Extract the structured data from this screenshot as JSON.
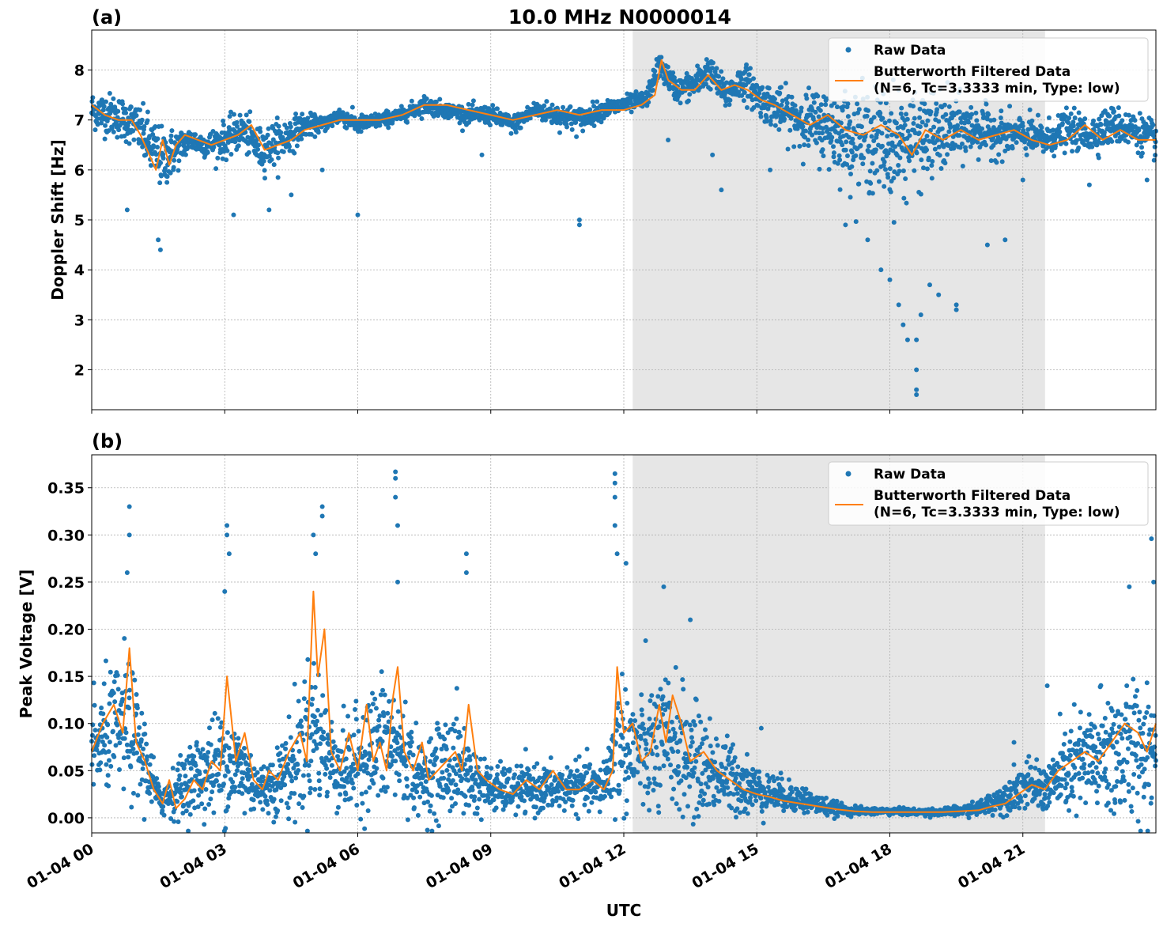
{
  "figure": {
    "title": "10.0 MHz N0000014",
    "xlabel": "UTC",
    "x_tick_labels": [
      "01-04 00",
      "01-04 03",
      "01-04 06",
      "01-04 09",
      "01-04 12",
      "01-04 15",
      "01-04 18",
      "01-04 21"
    ],
    "colors": {
      "raw": "#1f77b4",
      "filtered": "#ff7f0e",
      "shade": "#e6e6e6",
      "grid": "#b0b0b0"
    }
  },
  "chart_data": [
    {
      "type": "scatter",
      "panel_label": "(a)",
      "ylabel": "Doppler Shift [Hz]",
      "xlim_hours": [
        0,
        24
      ],
      "ylim": [
        1.2,
        8.8
      ],
      "yticks": [
        2,
        3,
        4,
        5,
        6,
        7,
        8
      ],
      "y_tick_labels": [
        "2",
        "3",
        "4",
        "5",
        "6",
        "7",
        "8"
      ],
      "shaded_interval_hours": [
        12.2,
        21.5
      ],
      "grid": true,
      "legend": {
        "placement": "top-right",
        "entries": [
          "Raw Data",
          "Butterworth Filtered Data",
          "(N=6, Tc=3.3333 min, Type: low)"
        ]
      },
      "series": [
        {
          "name": "Raw Data",
          "style": "points",
          "center_x_hours": [
            0,
            0.5,
            1.0,
            1.3,
            1.6,
            1.9,
            2.2,
            2.6,
            3.0,
            3.4,
            3.8,
            4.3,
            4.8,
            5.2,
            5.6,
            6.0,
            6.5,
            7.0,
            7.5,
            8.0,
            8.5,
            9.0,
            9.5,
            10.0,
            10.5,
            11.0,
            11.5,
            12.0,
            12.5,
            12.8,
            13.2,
            13.6,
            13.9,
            14.3,
            14.7,
            15.1,
            15.5,
            16.0,
            16.5,
            17.0,
            17.5,
            18.0,
            18.5,
            19.0,
            19.5,
            20.0,
            20.5,
            21.0,
            21.5,
            22.0,
            22.5,
            23.0,
            23.5,
            24.0
          ],
          "center_y": [
            7.2,
            7.1,
            6.9,
            6.5,
            6.2,
            6.4,
            6.6,
            6.5,
            6.6,
            6.8,
            6.4,
            6.6,
            6.9,
            6.9,
            7.1,
            6.9,
            7.0,
            7.1,
            7.3,
            7.2,
            7.1,
            7.1,
            6.9,
            7.2,
            7.1,
            7.0,
            7.2,
            7.3,
            7.4,
            8.1,
            7.6,
            7.7,
            8.0,
            7.5,
            7.8,
            7.4,
            7.2,
            7.0,
            6.9,
            6.7,
            6.6,
            6.5,
            6.6,
            6.7,
            6.8,
            6.8,
            6.7,
            6.7,
            6.6,
            6.8,
            6.7,
            6.9,
            6.8,
            6.6
          ],
          "spread": [
            0.3,
            0.35,
            0.35,
            0.5,
            0.5,
            0.35,
            0.2,
            0.2,
            0.3,
            0.3,
            0.35,
            0.35,
            0.2,
            0.12,
            0.15,
            0.15,
            0.12,
            0.12,
            0.15,
            0.12,
            0.15,
            0.15,
            0.15,
            0.15,
            0.2,
            0.2,
            0.15,
            0.15,
            0.15,
            0.2,
            0.2,
            0.25,
            0.25,
            0.25,
            0.3,
            0.3,
            0.35,
            0.45,
            0.6,
            0.7,
            0.8,
            0.9,
            0.85,
            0.7,
            0.55,
            0.4,
            0.35,
            0.3,
            0.3,
            0.3,
            0.3,
            0.3,
            0.3,
            0.3
          ],
          "outliers": [
            [
              1.55,
              4.4
            ],
            [
              1.5,
              4.6
            ],
            [
              0.8,
              5.2
            ],
            [
              3.2,
              5.1
            ],
            [
              4.0,
              5.2
            ],
            [
              4.5,
              5.5
            ],
            [
              5.2,
              6.0
            ],
            [
              6.0,
              5.1
            ],
            [
              8.8,
              6.3
            ],
            [
              11.0,
              5.0
            ],
            [
              11.0,
              4.9
            ],
            [
              13.0,
              6.6
            ],
            [
              14.0,
              6.3
            ],
            [
              14.2,
              5.6
            ],
            [
              15.3,
              6.0
            ],
            [
              17.0,
              4.9
            ],
            [
              17.5,
              4.6
            ],
            [
              17.8,
              4.0
            ],
            [
              18.0,
              3.8
            ],
            [
              18.2,
              3.3
            ],
            [
              18.3,
              2.9
            ],
            [
              18.4,
              2.6
            ],
            [
              18.6,
              2.6
            ],
            [
              18.6,
              2.0
            ],
            [
              18.6,
              1.6
            ],
            [
              18.6,
              1.5
            ],
            [
              18.7,
              3.1
            ],
            [
              18.9,
              3.7
            ],
            [
              19.1,
              3.5
            ],
            [
              19.5,
              3.2
            ],
            [
              19.5,
              3.3
            ],
            [
              20.2,
              4.5
            ],
            [
              20.6,
              4.6
            ],
            [
              21.0,
              5.8
            ],
            [
              22.5,
              5.7
            ],
            [
              23.8,
              5.8
            ]
          ]
        },
        {
          "name": "Butterworth Filtered Data",
          "style": "line",
          "x_hours": [
            0,
            0.3,
            0.6,
            0.9,
            1.1,
            1.3,
            1.45,
            1.6,
            1.75,
            1.9,
            2.1,
            2.4,
            2.7,
            3.0,
            3.3,
            3.6,
            3.9,
            4.2,
            4.5,
            4.8,
            5.2,
            5.6,
            6.0,
            6.5,
            7.0,
            7.5,
            8.0,
            8.5,
            9.0,
            9.5,
            10.0,
            10.5,
            11.0,
            11.5,
            12.0,
            12.4,
            12.7,
            12.85,
            13.0,
            13.3,
            13.6,
            13.9,
            14.2,
            14.5,
            14.8,
            15.1,
            15.4,
            15.8,
            16.2,
            16.6,
            17.0,
            17.4,
            17.8,
            18.2,
            18.5,
            18.8,
            19.2,
            19.6,
            20.0,
            20.4,
            20.8,
            21.2,
            21.6,
            22.0,
            22.4,
            22.8,
            23.2,
            23.6,
            24.0
          ],
          "y": [
            7.3,
            7.1,
            7.0,
            7.0,
            6.7,
            6.3,
            6.0,
            6.6,
            6.1,
            6.5,
            6.7,
            6.6,
            6.5,
            6.6,
            6.7,
            6.9,
            6.4,
            6.5,
            6.6,
            6.8,
            6.9,
            7.0,
            7.0,
            7.0,
            7.1,
            7.3,
            7.3,
            7.2,
            7.1,
            7.0,
            7.1,
            7.2,
            7.1,
            7.2,
            7.2,
            7.3,
            7.5,
            8.2,
            7.8,
            7.6,
            7.6,
            7.9,
            7.6,
            7.7,
            7.6,
            7.4,
            7.3,
            7.1,
            6.9,
            7.1,
            6.8,
            6.7,
            6.9,
            6.7,
            6.3,
            6.8,
            6.6,
            6.8,
            6.6,
            6.7,
            6.8,
            6.6,
            6.5,
            6.6,
            6.9,
            6.6,
            6.8,
            6.6,
            6.6
          ]
        }
      ]
    },
    {
      "type": "scatter",
      "panel_label": "(b)",
      "ylabel": "Peak Voltage [V]",
      "xlim_hours": [
        0,
        24
      ],
      "ylim": [
        -0.016,
        0.385
      ],
      "yticks": [
        0.0,
        0.05,
        0.1,
        0.15,
        0.2,
        0.25,
        0.3,
        0.35
      ],
      "y_tick_labels": [
        "0.00",
        "0.05",
        "0.10",
        "0.15",
        "0.20",
        "0.25",
        "0.30",
        "0.35"
      ],
      "shaded_interval_hours": [
        12.2,
        21.5
      ],
      "grid": true,
      "legend": {
        "placement": "top-right",
        "entries": [
          "Raw Data",
          "Butterworth Filtered Data",
          "(N=6, Tc=3.3333 min, Type: low)"
        ]
      },
      "series": [
        {
          "name": "Raw Data",
          "style": "points",
          "center_x_hours": [
            0,
            0.4,
            0.8,
            1.2,
            1.5,
            1.8,
            2.2,
            2.6,
            3.0,
            3.4,
            3.8,
            4.2,
            4.6,
            5.0,
            5.4,
            5.8,
            6.2,
            6.6,
            7.0,
            7.4,
            7.8,
            8.2,
            8.6,
            9.0,
            9.5,
            10.0,
            10.5,
            11.0,
            11.5,
            11.9,
            12.3,
            12.7,
            13.1,
            13.5,
            14.0,
            14.5,
            15.0,
            15.5,
            16.0,
            16.5,
            17.0,
            17.5,
            18.0,
            18.5,
            19.0,
            19.5,
            20.0,
            20.5,
            21.0,
            21.5,
            22.0,
            22.5,
            23.0,
            23.5,
            24.0
          ],
          "center_y": [
            0.07,
            0.09,
            0.1,
            0.06,
            0.02,
            0.025,
            0.04,
            0.05,
            0.06,
            0.05,
            0.03,
            0.04,
            0.06,
            0.1,
            0.06,
            0.05,
            0.07,
            0.08,
            0.07,
            0.04,
            0.05,
            0.06,
            0.04,
            0.03,
            0.03,
            0.03,
            0.03,
            0.035,
            0.03,
            0.08,
            0.07,
            0.07,
            0.08,
            0.06,
            0.05,
            0.04,
            0.03,
            0.025,
            0.02,
            0.012,
            0.008,
            0.007,
            0.007,
            0.006,
            0.006,
            0.007,
            0.01,
            0.02,
            0.035,
            0.03,
            0.05,
            0.06,
            0.07,
            0.07,
            0.08
          ],
          "spread": [
            0.04,
            0.05,
            0.06,
            0.04,
            0.015,
            0.02,
            0.03,
            0.04,
            0.05,
            0.04,
            0.02,
            0.03,
            0.05,
            0.07,
            0.04,
            0.04,
            0.05,
            0.06,
            0.05,
            0.03,
            0.04,
            0.05,
            0.03,
            0.02,
            0.02,
            0.02,
            0.02,
            0.02,
            0.02,
            0.06,
            0.05,
            0.06,
            0.06,
            0.05,
            0.04,
            0.03,
            0.02,
            0.015,
            0.012,
            0.008,
            0.004,
            0.003,
            0.003,
            0.003,
            0.003,
            0.004,
            0.006,
            0.012,
            0.02,
            0.02,
            0.04,
            0.05,
            0.06,
            0.06,
            0.06
          ],
          "outliers": [
            [
              0.85,
              0.33
            ],
            [
              0.85,
              0.3
            ],
            [
              0.8,
              0.26
            ],
            [
              3.05,
              0.31
            ],
            [
              3.05,
              0.3
            ],
            [
              3.1,
              0.28
            ],
            [
              3.0,
              0.24
            ],
            [
              5.0,
              0.3
            ],
            [
              5.05,
              0.28
            ],
            [
              5.2,
              0.33
            ],
            [
              5.2,
              0.32
            ],
            [
              6.85,
              0.367
            ],
            [
              6.85,
              0.36
            ],
            [
              6.85,
              0.34
            ],
            [
              6.9,
              0.31
            ],
            [
              6.9,
              0.25
            ],
            [
              8.45,
              0.28
            ],
            [
              8.45,
              0.26
            ],
            [
              11.8,
              0.365
            ],
            [
              11.8,
              0.355
            ],
            [
              11.8,
              0.34
            ],
            [
              11.8,
              0.31
            ],
            [
              11.85,
              0.28
            ],
            [
              12.05,
              0.27
            ],
            [
              12.9,
              0.245
            ],
            [
              13.5,
              0.21
            ],
            [
              15.1,
              0.095
            ],
            [
              20.8,
              0.08
            ],
            [
              21.55,
              0.14
            ],
            [
              23.4,
              0.245
            ],
            [
              23.9,
              0.296
            ],
            [
              23.95,
              0.25
            ]
          ]
        },
        {
          "name": "Butterworth Filtered Data",
          "style": "line",
          "x_hours": [
            0,
            0.25,
            0.5,
            0.7,
            0.85,
            1.0,
            1.2,
            1.4,
            1.6,
            1.75,
            1.9,
            2.1,
            2.3,
            2.5,
            2.7,
            2.9,
            3.05,
            3.25,
            3.45,
            3.65,
            3.85,
            4.0,
            4.2,
            4.45,
            4.7,
            4.85,
            5.0,
            5.1,
            5.25,
            5.4,
            5.6,
            5.8,
            6.0,
            6.2,
            6.35,
            6.5,
            6.65,
            6.8,
            6.9,
            7.05,
            7.25,
            7.45,
            7.6,
            7.8,
            8.0,
            8.2,
            8.35,
            8.5,
            8.7,
            8.9,
            9.2,
            9.5,
            9.8,
            10.1,
            10.4,
            10.7,
            11.0,
            11.3,
            11.55,
            11.75,
            11.85,
            12.0,
            12.2,
            12.4,
            12.6,
            12.8,
            12.95,
            13.1,
            13.3,
            13.5,
            13.8,
            14.1,
            14.4,
            14.7,
            15.0,
            15.3,
            15.6,
            16.0,
            16.4,
            16.8,
            17.2,
            17.6,
            18.0,
            18.4,
            18.8,
            19.2,
            19.6,
            20.0,
            20.3,
            20.6,
            20.9,
            21.2,
            21.5,
            21.8,
            22.1,
            22.4,
            22.7,
            23.0,
            23.3,
            23.6,
            23.8,
            24.0
          ],
          "y": [
            0.07,
            0.1,
            0.12,
            0.09,
            0.18,
            0.08,
            0.06,
            0.03,
            0.015,
            0.04,
            0.01,
            0.02,
            0.04,
            0.03,
            0.06,
            0.05,
            0.15,
            0.06,
            0.09,
            0.04,
            0.03,
            0.05,
            0.04,
            0.07,
            0.09,
            0.06,
            0.24,
            0.15,
            0.2,
            0.07,
            0.05,
            0.09,
            0.05,
            0.12,
            0.06,
            0.08,
            0.05,
            0.13,
            0.16,
            0.07,
            0.05,
            0.08,
            0.04,
            0.05,
            0.06,
            0.07,
            0.05,
            0.12,
            0.05,
            0.04,
            0.03,
            0.025,
            0.04,
            0.03,
            0.05,
            0.03,
            0.03,
            0.04,
            0.03,
            0.05,
            0.16,
            0.09,
            0.1,
            0.06,
            0.07,
            0.12,
            0.08,
            0.13,
            0.1,
            0.06,
            0.07,
            0.05,
            0.04,
            0.03,
            0.025,
            0.022,
            0.018,
            0.015,
            0.012,
            0.009,
            0.007,
            0.006,
            0.006,
            0.006,
            0.006,
            0.006,
            0.007,
            0.008,
            0.012,
            0.015,
            0.025,
            0.035,
            0.03,
            0.05,
            0.06,
            0.07,
            0.06,
            0.08,
            0.1,
            0.09,
            0.07,
            0.1
          ]
        }
      ]
    }
  ]
}
